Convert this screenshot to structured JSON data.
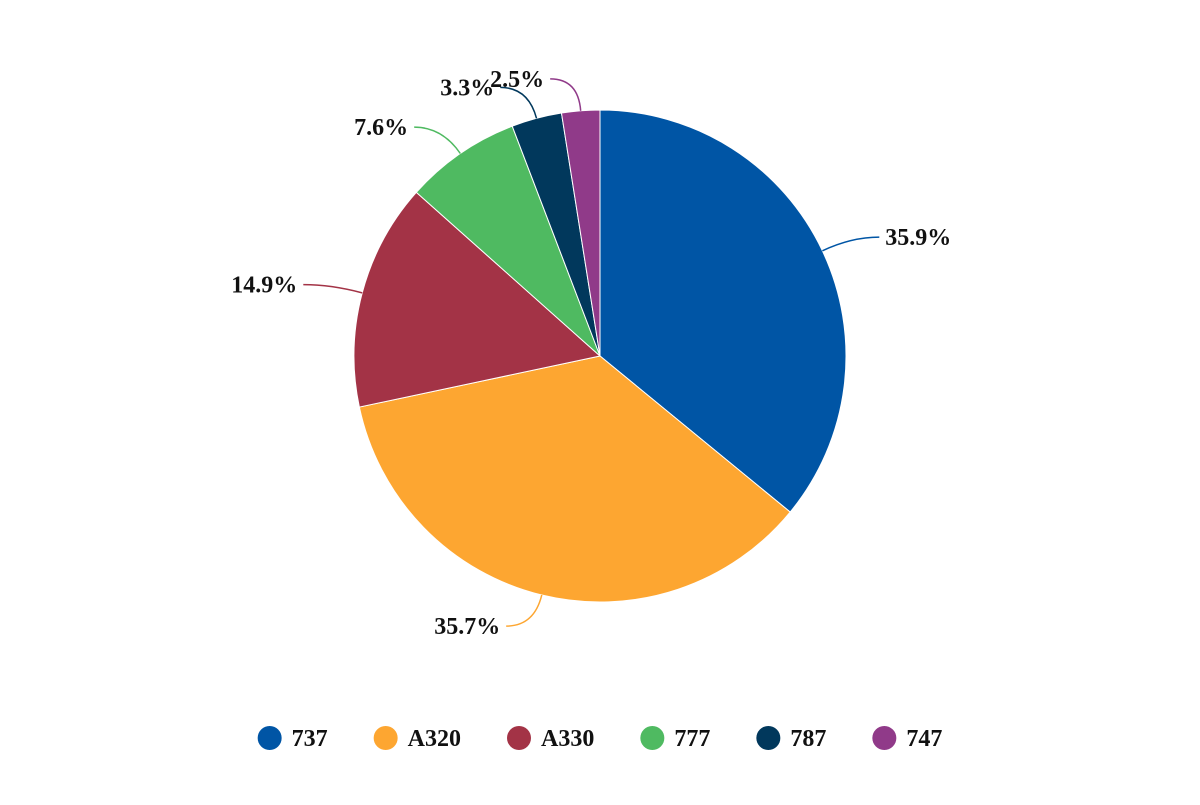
{
  "chart_data": {
    "type": "pie",
    "start_angle_deg": 0,
    "direction": "clockwise",
    "slices": [
      {
        "name": "737",
        "value": 35.9,
        "label": "35.9%",
        "color": "#0055a5"
      },
      {
        "name": "A320",
        "value": 35.7,
        "label": "35.7%",
        "color": "#fda631"
      },
      {
        "name": "A330",
        "value": 14.9,
        "label": "14.9%",
        "color": "#a33346"
      },
      {
        "name": "777",
        "value": 7.6,
        "label": "7.6%",
        "color": "#4fba61"
      },
      {
        "name": "787",
        "value": 3.3,
        "label": "3.3%",
        "color": "#01385c"
      },
      {
        "name": "747",
        "value": 2.5,
        "label": "2.5%",
        "color": "#903a89"
      }
    ],
    "legend": {
      "position": "bottom"
    }
  }
}
